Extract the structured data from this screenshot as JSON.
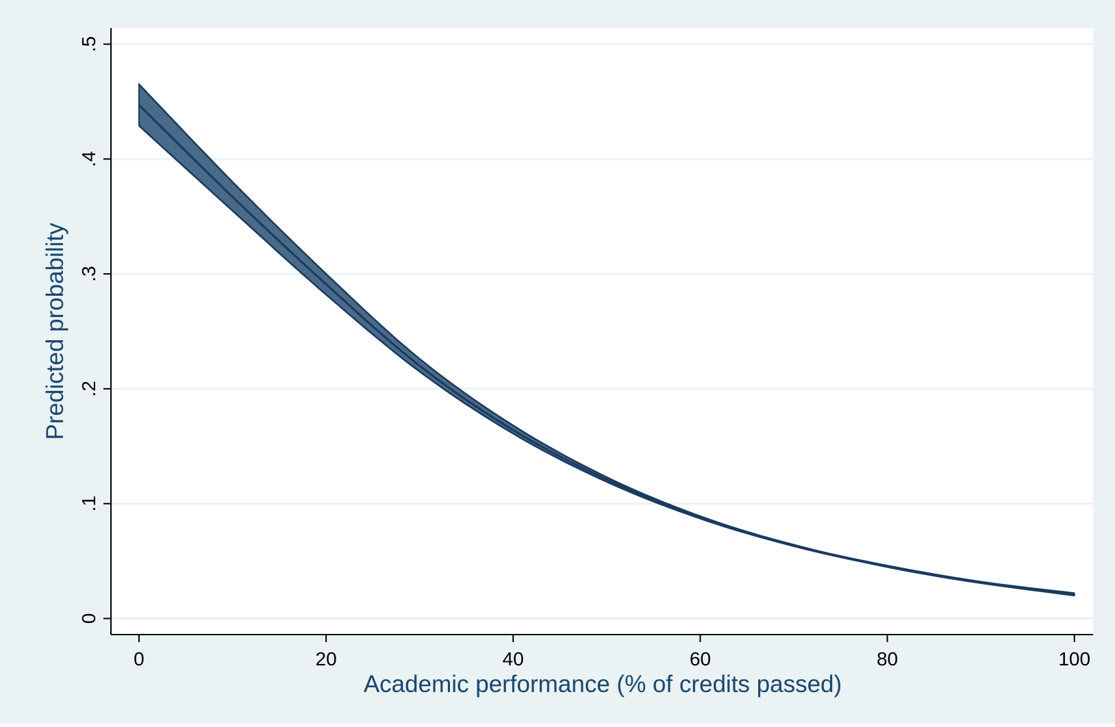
{
  "chart_data": {
    "type": "area",
    "title": "",
    "xlabel": "Academic performance (% of credits passed)",
    "ylabel": "Predicted probability",
    "xlim": [
      -3,
      102
    ],
    "ylim": [
      -0.014,
      0.514
    ],
    "xticks": [
      0,
      20,
      40,
      60,
      80,
      100
    ],
    "xtick_labels": [
      "0",
      "20",
      "40",
      "60",
      "80",
      "100"
    ],
    "yticks": [
      0,
      0.1,
      0.2,
      0.3,
      0.4,
      0.5
    ],
    "ytick_labels": [
      "0",
      ".1",
      ".2",
      ".3",
      ".4",
      ".5"
    ],
    "grid": true,
    "legend": "none",
    "colors": {
      "outer_background": "#eaf2f3",
      "plot_background": "#ffffff",
      "gridline": "#eaf2f3",
      "band_fill": "#4a6a8a",
      "line": "#1a3a5e",
      "axis_label": "#1a476f",
      "axis": "#000000"
    },
    "series": [
      {
        "kind": "confidence-band",
        "x": [
          0,
          10,
          20,
          30,
          40,
          50,
          60,
          70,
          80,
          90,
          100
        ],
        "lower": [
          0.429,
          0.355,
          0.282,
          0.215,
          0.161,
          0.119,
          0.087,
          0.063,
          0.045,
          0.031,
          0.02
        ],
        "upper": [
          0.465,
          0.38,
          0.3,
          0.226,
          0.168,
          0.123,
          0.089,
          0.064,
          0.046,
          0.032,
          0.022
        ]
      },
      {
        "kind": "prediction-line",
        "x": [
          0,
          10,
          20,
          30,
          40,
          50,
          60,
          70,
          80,
          90,
          100
        ],
        "y": [
          0.447,
          0.367,
          0.291,
          0.22,
          0.164,
          0.121,
          0.088,
          0.064,
          0.045,
          0.031,
          0.021
        ]
      }
    ]
  }
}
